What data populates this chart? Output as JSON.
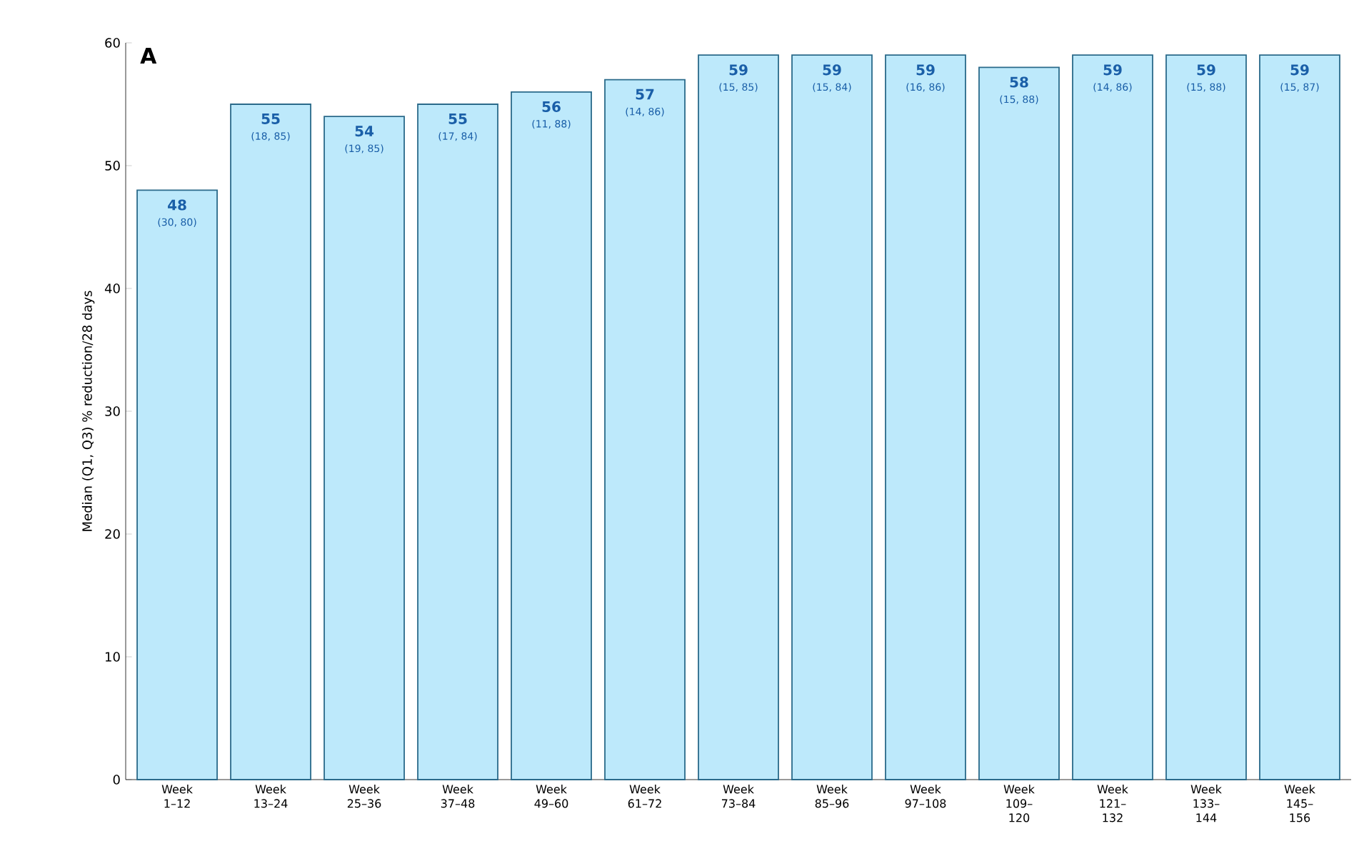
{
  "chart_data": {
    "type": "bar",
    "title": "A",
    "ylabel": "Median (Q1, Q3) % reduction/28 days",
    "categories": [
      "Week 1–12",
      "Week 13–24",
      "Week 25–36",
      "Week 37–48",
      "Week 49–60",
      "Week 61–72",
      "Week 73–84",
      "Week 85–96",
      "Week 97–108",
      "Week 109–120",
      "Week 121–132",
      "Week 133–144",
      "Week 145–156"
    ],
    "values": [
      48,
      55,
      54,
      55,
      56,
      57,
      59,
      59,
      59,
      58,
      59,
      59,
      59
    ],
    "color": "#bde9fb",
    "data_labels": true,
    "annotations": [
      {
        "text": "(30, 80)",
        "x": "Week 1–12",
        "y": 48
      },
      {
        "text": "(18, 85)",
        "x": "Week 13–24",
        "y": 55
      },
      {
        "text": "(19, 85)",
        "x": "Week 25–36",
        "y": 54
      },
      {
        "text": "(17, 84)",
        "x": "Week 37–48",
        "y": 55
      },
      {
        "text": "(11, 88)",
        "x": "Week 49–60",
        "y": 56
      },
      {
        "text": "(14, 86)",
        "x": "Week 61–72",
        "y": 57
      },
      {
        "text": "(15, 85)",
        "x": "Week 73–84",
        "y": 59
      },
      {
        "text": "(15, 84)",
        "x": "Week 85–96",
        "y": 59
      },
      {
        "text": "(16, 86)",
        "x": "Week 97–108",
        "y": 59
      },
      {
        "text": "(15, 88)",
        "x": "Week 109–120",
        "y": 58
      },
      {
        "text": "(14, 86)",
        "x": "Week 121–132",
        "y": 59
      },
      {
        "text": "(15, 88)",
        "x": "Week 133–144",
        "y": 59
      },
      {
        "text": "(15, 87)",
        "x": "Week 145–156",
        "y": 59
      }
    ],
    "ylim": [
      0,
      60
    ],
    "yticks": [
      0,
      10,
      20,
      30,
      40,
      50,
      60
    ],
    "grid": false
  }
}
